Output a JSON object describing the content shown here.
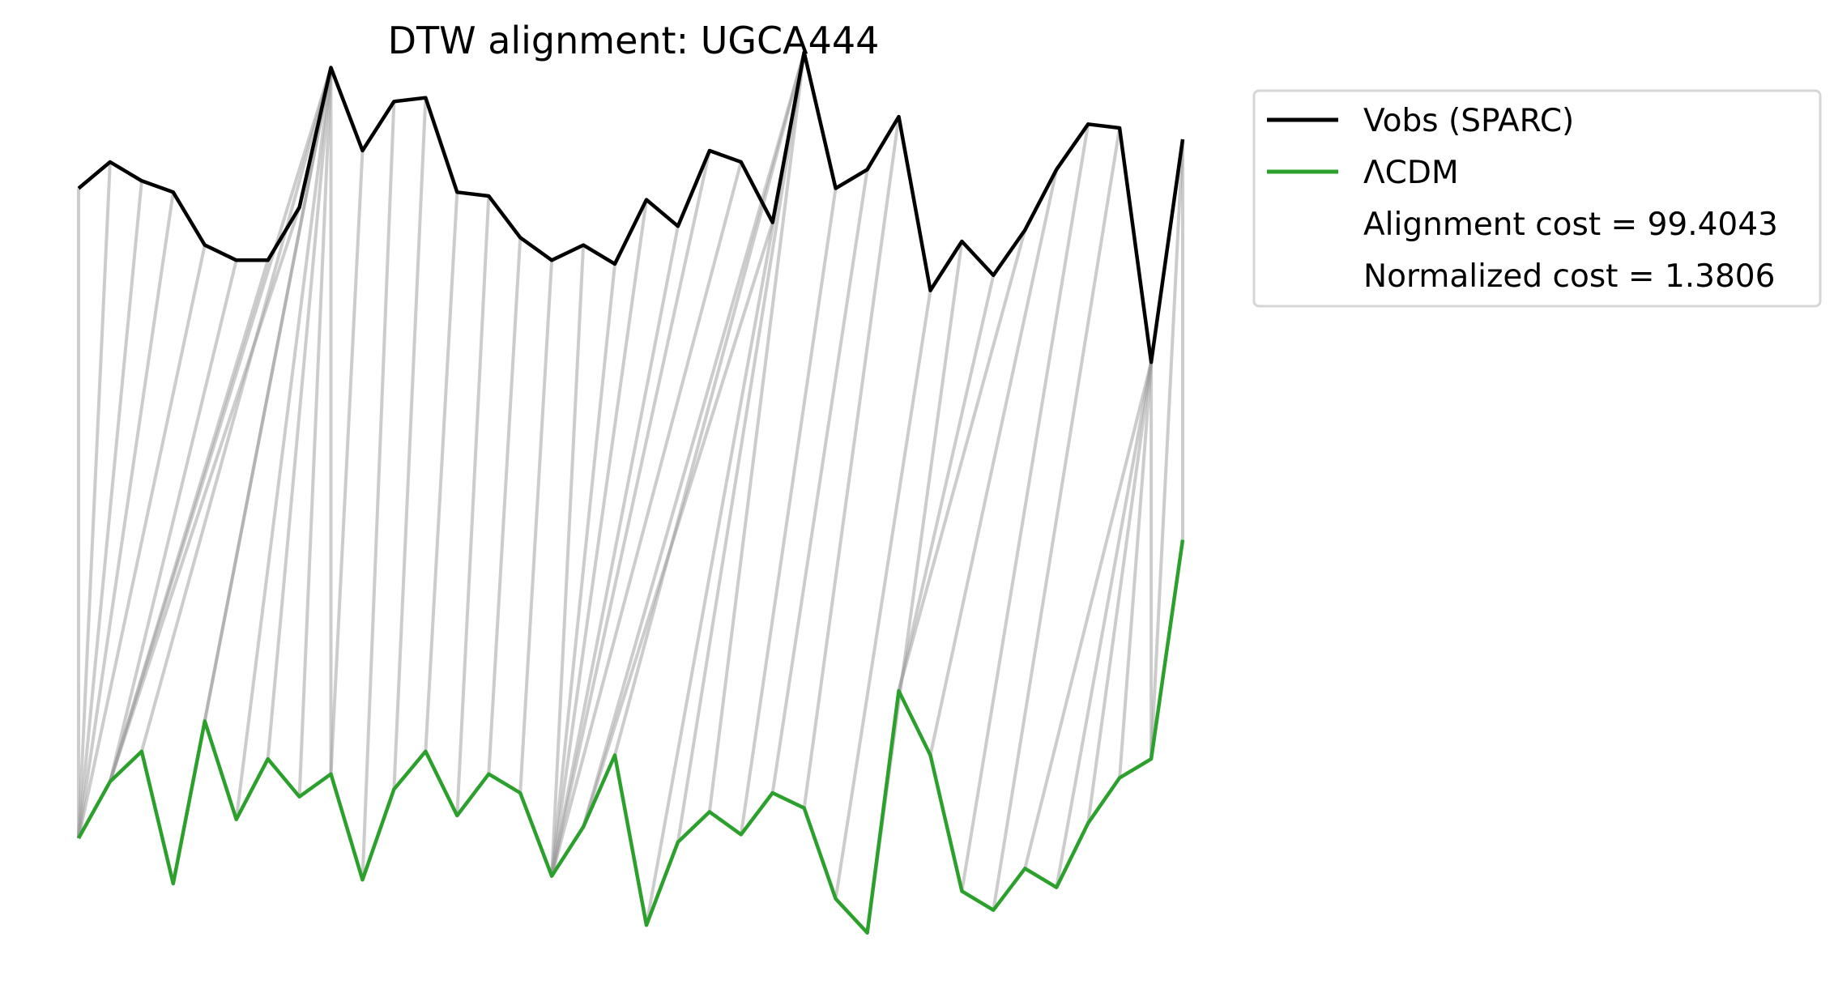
{
  "chart_data": {
    "type": "line",
    "title": "DTW alignment: UGCA444",
    "xlabel": "",
    "ylabel": "",
    "axes_visible": false,
    "grid": false,
    "legend_placement": "outside upper right",
    "colors": {
      "observed": "#000000",
      "model": "#2ca02c",
      "alignment": "#999999"
    },
    "series": [
      {
        "name": "Vobs (SPARC)",
        "color": "#000000",
        "values": [
          0.87,
          0.94,
          0.89,
          0.86,
          0.72,
          0.68,
          0.68,
          0.82,
          1.19,
          0.97,
          1.1,
          1.11,
          0.86,
          0.85,
          0.74,
          0.68,
          0.72,
          0.67,
          0.84,
          0.77,
          0.97,
          0.94,
          0.78,
          1.23,
          0.87,
          0.92,
          1.06,
          0.6,
          0.73,
          0.64,
          0.76,
          0.92,
          1.04,
          1.03,
          0.41,
          1.0
        ]
      },
      {
        "name": "ΛCDM",
        "color": "#2ca02c",
        "values": [
          -0.85,
          -0.7,
          -0.62,
          -0.97,
          -0.54,
          -0.8,
          -0.64,
          -0.74,
          -0.68,
          -0.96,
          -0.72,
          -0.62,
          -0.79,
          -0.68,
          -0.73,
          -0.95,
          -0.82,
          -0.63,
          -1.08,
          -0.86,
          -0.78,
          -0.84,
          -0.73,
          -0.77,
          -1.01,
          -1.1,
          -0.46,
          -0.63,
          -0.99,
          -1.04,
          -0.93,
          -0.98,
          -0.81,
          -0.69,
          -0.64,
          -0.06
        ]
      }
    ],
    "alignment_path": [
      [
        0,
        0
      ],
      [
        1,
        0
      ],
      [
        2,
        0
      ],
      [
        3,
        0
      ],
      [
        4,
        0
      ],
      [
        5,
        1
      ],
      [
        6,
        1
      ],
      [
        7,
        1
      ],
      [
        8,
        1
      ],
      [
        8,
        2
      ],
      [
        8,
        3
      ],
      [
        8,
        4
      ],
      [
        8,
        5
      ],
      [
        8,
        6
      ],
      [
        8,
        7
      ],
      [
        8,
        8
      ],
      [
        9,
        8
      ],
      [
        10,
        9
      ],
      [
        11,
        10
      ],
      [
        12,
        11
      ],
      [
        13,
        12
      ],
      [
        14,
        13
      ],
      [
        15,
        14
      ],
      [
        16,
        15
      ],
      [
        17,
        15
      ],
      [
        18,
        15
      ],
      [
        19,
        15
      ],
      [
        20,
        15
      ],
      [
        21,
        15
      ],
      [
        22,
        16
      ],
      [
        23,
        16
      ],
      [
        23,
        17
      ],
      [
        23,
        18
      ],
      [
        23,
        19
      ],
      [
        23,
        20
      ],
      [
        24,
        21
      ],
      [
        25,
        22
      ],
      [
        26,
        23
      ],
      [
        27,
        24
      ],
      [
        28,
        25
      ],
      [
        29,
        26
      ],
      [
        30,
        26
      ],
      [
        31,
        27
      ],
      [
        32,
        28
      ],
      [
        33,
        29
      ],
      [
        34,
        30
      ],
      [
        34,
        31
      ],
      [
        34,
        32
      ],
      [
        34,
        33
      ],
      [
        34,
        34
      ],
      [
        35,
        34
      ],
      [
        35,
        35
      ]
    ],
    "annotations": [
      "Alignment cost = 99.4043",
      "Normalized cost = 1.3806"
    ]
  }
}
